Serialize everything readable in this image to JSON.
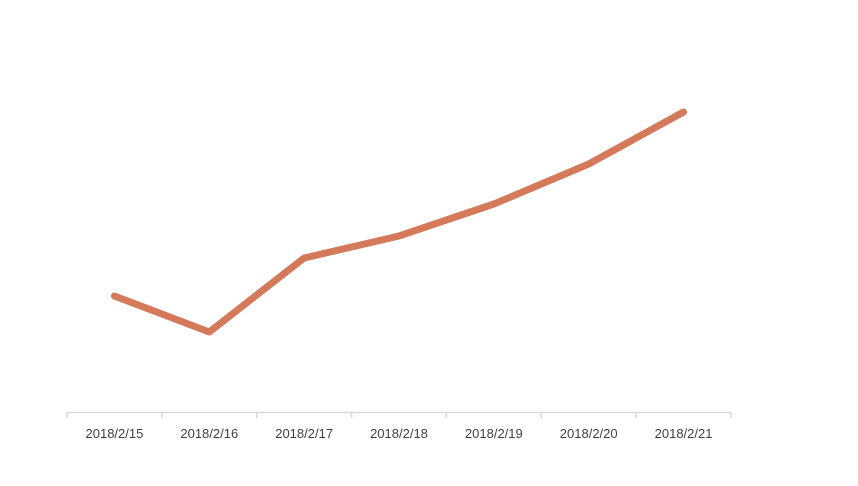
{
  "chart_data": {
    "type": "line",
    "title": "",
    "xlabel": "",
    "ylabel": "",
    "categories": [
      "2018/2/15",
      "2018/2/16",
      "2018/2/17",
      "2018/2/18",
      "2018/2/19",
      "2018/2/20",
      "2018/2/21"
    ],
    "series": [
      {
        "values": [
          29,
          20,
          38.5,
          44,
          52,
          62,
          75
        ],
        "color": "#D4795A"
      }
    ],
    "ylim": [
      0,
      100
    ],
    "y_axis_shown": false,
    "grid": false,
    "legend": "none",
    "axis_color": "#D9D9D9"
  }
}
